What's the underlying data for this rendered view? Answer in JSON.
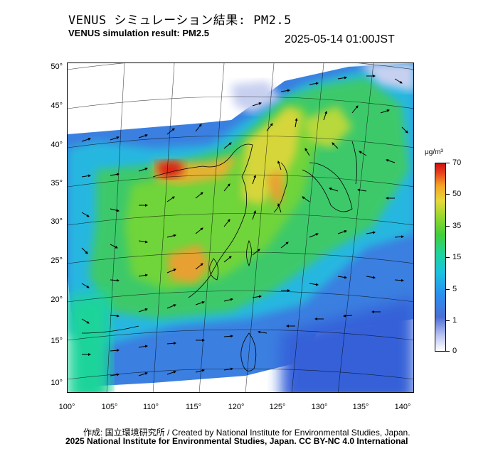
{
  "header": {
    "title_jp": "VENUS シミュレーション結果: PM2.5",
    "title_en": "VENUS simulation result: PM2.5",
    "timestamp": "2025-05-14 01:00JST"
  },
  "map": {
    "lat_labels": [
      "50°",
      "45°",
      "40°",
      "35°",
      "30°",
      "25°",
      "20°",
      "15°",
      "10°"
    ],
    "lon_labels": [
      "100°",
      "105°",
      "110°",
      "115°",
      "120°",
      "125°",
      "130°",
      "135°",
      "140°"
    ],
    "field": "PM2.5 concentration with wind vectors"
  },
  "colorbar": {
    "unit": "μg/m³",
    "labels": [
      "70",
      "50",
      "35",
      "15",
      "5",
      "1",
      "0"
    ],
    "colors": [
      "#ffffff",
      "#4b6fd6",
      "#19c3e0",
      "#41cf3a",
      "#e8d83a",
      "#f5a524",
      "#d01010"
    ]
  },
  "footer": {
    "credit_line": "作成: 国立環境研究所 / Created by National Institute for Environmental Studies, Japan.",
    "license_line": "2025 National Institute for Environmental Studies, Japan. CC BY-NC 4.0 International"
  }
}
